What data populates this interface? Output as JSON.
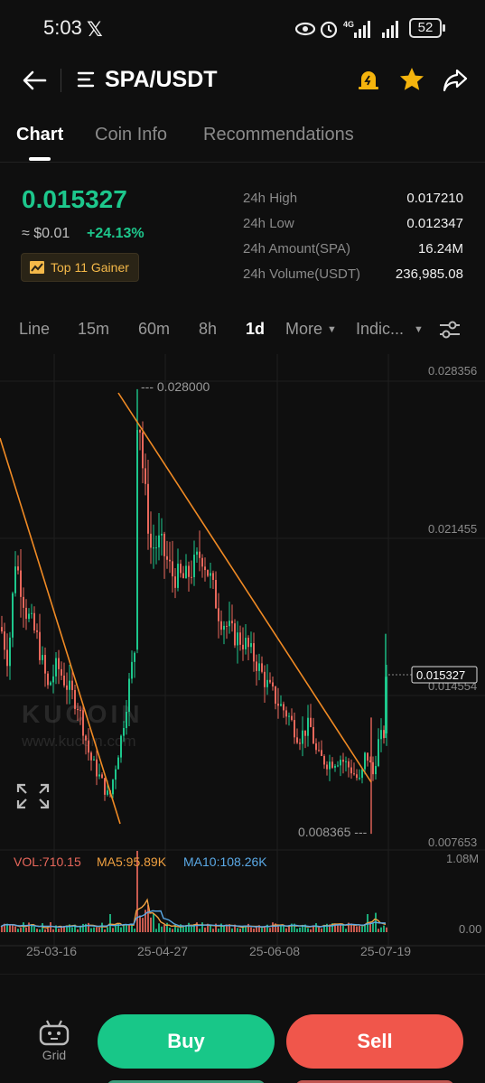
{
  "status_bar": {
    "time": "5:03",
    "app_icon": "x-logo",
    "net_type": "4G",
    "battery": "52"
  },
  "header": {
    "pair": "SPA/USDT",
    "icons": [
      "back-arrow-icon",
      "menu-icon",
      "alert-bell-icon",
      "star-icon",
      "share-icon"
    ],
    "star_color": "#f5b40d",
    "alert_color": "#f5b40d"
  },
  "tabs": [
    {
      "label": "Chart",
      "active": true
    },
    {
      "label": "Coin Info",
      "active": false
    },
    {
      "label": "Recommendations",
      "active": false
    }
  ],
  "price": {
    "last": "0.015327",
    "fiat": "≈ $0.01",
    "change": "+24.13%",
    "badge": "Top 11 Gainer",
    "up_color": "#1dc78c"
  },
  "stats": [
    {
      "label": "24h High",
      "value": "0.017210"
    },
    {
      "label": "24h Low",
      "value": "0.012347"
    },
    {
      "label": "24h Amount(SPA)",
      "value": "16.24M"
    },
    {
      "label": "24h Volume(USDT)",
      "value": "236,985.08"
    }
  ],
  "toolbar": {
    "items": [
      "Line",
      "15m",
      "60m",
      "8h",
      "1d",
      "More",
      "Indic..."
    ],
    "active": "1d"
  },
  "chart": {
    "price_axis": [
      "0.028356",
      "0.021455",
      "0.014554",
      "0.007653"
    ],
    "current_price": "0.015327",
    "high_marker": "0.028000",
    "low_marker": "0.008365",
    "watermark": "KUCOIN",
    "watermark_url": "www.kucoin.com",
    "vol_axis_top": "1.08M",
    "vol_axis_bottom": "0.00",
    "date_labels": [
      "25-03-16",
      "25-04-27",
      "25-06-08",
      "25-07-19"
    ],
    "indicators": {
      "vol": "VOL:710.15",
      "ma5": "MA5:95.89K",
      "ma10": "MA10:108.26K"
    },
    "colors": {
      "up": "#1dc78c",
      "down": "#e8675b",
      "trendline": "#f08a24",
      "ma5": "#f0a040",
      "ma10": "#5aa9e6"
    }
  },
  "bottom": {
    "grid_label": "Grid",
    "buy": "Buy",
    "sell": "Sell"
  }
}
